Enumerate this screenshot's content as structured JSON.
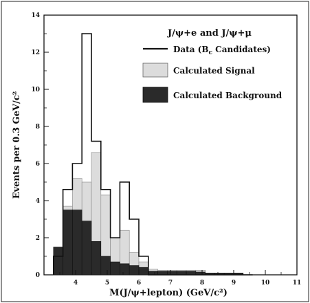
{
  "chart_data": {
    "type": "histogram",
    "title": "J/ψ+e  and J/ψ+μ",
    "xlabel": "M(J/ψ+lepton) (GeV/c²)",
    "ylabel": "Events per 0.3 GeV/c²",
    "xlim": [
      3.0,
      11.0
    ],
    "ylim": [
      0,
      14
    ],
    "x_ticks": [
      "4",
      "5",
      "6",
      "7",
      "8",
      "9",
      "10",
      "11"
    ],
    "y_ticks": [
      "0",
      "2",
      "4",
      "6",
      "8",
      "10",
      "12",
      "14"
    ],
    "bin_edges": [
      3.3,
      3.6,
      3.9,
      4.2,
      4.5,
      4.8,
      5.1,
      5.4,
      5.7,
      6.0,
      6.3,
      6.6,
      6.9,
      7.2,
      7.5,
      7.8,
      8.1,
      8.4,
      8.7,
      9.0,
      9.3,
      9.6
    ],
    "series": [
      {
        "name": "Data (Bс Candidates)",
        "style": "outline",
        "values": [
          1.0,
          4.6,
          6.0,
          13.0,
          7.2,
          4.6,
          2.0,
          5.0,
          3.0,
          1.0,
          0.0,
          0.0,
          0.0,
          0.0,
          0.0,
          0.0,
          0.0,
          0.0,
          0.0,
          0.0,
          0.0
        ]
      },
      {
        "name": "Calculated Signal",
        "style": "light",
        "values": [
          1.0,
          3.7,
          5.2,
          5.0,
          6.6,
          4.3,
          2.0,
          2.4,
          1.2,
          0.7,
          0.3,
          0.25,
          0.25,
          0.25,
          0.25,
          0.25,
          0.1,
          0.1,
          0.1,
          0.1,
          0.0
        ]
      },
      {
        "name": "Calculated Background",
        "style": "dark",
        "values": [
          1.5,
          3.5,
          3.5,
          2.9,
          1.8,
          1.0,
          0.7,
          0.6,
          0.5,
          0.4,
          0.2,
          0.2,
          0.2,
          0.2,
          0.2,
          0.15,
          0.1,
          0.1,
          0.1,
          0.1,
          0.0
        ]
      }
    ],
    "legend": {
      "data_label": "Data (B",
      "data_sub": "c",
      "data_suffix": " Candidates)",
      "signal_label": "Calculated Signal",
      "background_label": "Calculated Background"
    },
    "colors": {
      "signal_fill": "#dcdcdc",
      "background_fill": "#2a2a2a",
      "outline": "#111111"
    }
  }
}
